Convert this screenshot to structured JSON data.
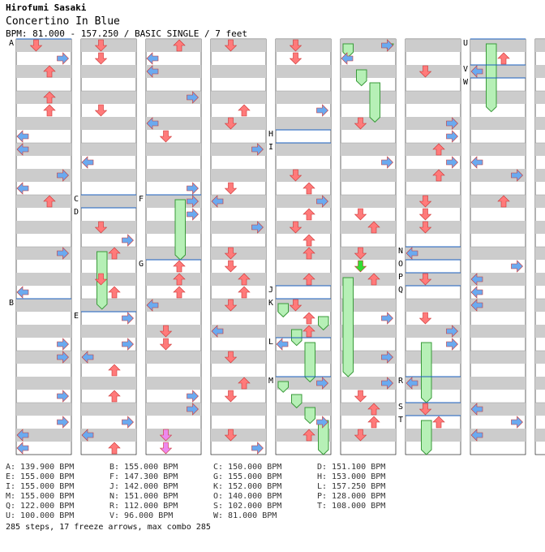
{
  "header": {
    "artist": "Hirofumi Sasaki",
    "title": "Concertino In Blue",
    "info": "BPM: 81.000 - 157.250 / BASIC SINGLE / 7 feet"
  },
  "columns": 9,
  "measures_per_column": 8,
  "bpm_changes": [
    {
      "label": "A",
      "col": 0,
      "measure": 0.0
    },
    {
      "label": "B",
      "col": 0,
      "measure": 5.0
    },
    {
      "label": "C",
      "col": 1,
      "measure": 3.0
    },
    {
      "label": "D",
      "col": 1,
      "measure": 3.25
    },
    {
      "label": "E",
      "col": 1,
      "measure": 5.25
    },
    {
      "label": "F",
      "col": 2,
      "measure": 3.0
    },
    {
      "label": "G",
      "col": 2,
      "measure": 4.25
    },
    {
      "label": "H",
      "col": 4,
      "measure": 1.75
    },
    {
      "label": "I",
      "col": 4,
      "measure": 2.0
    },
    {
      "label": "J",
      "col": 4,
      "measure": 4.75
    },
    {
      "label": "K",
      "col": 4,
      "measure": 5.0
    },
    {
      "label": "L",
      "col": 4,
      "measure": 5.75
    },
    {
      "label": "M",
      "col": 4,
      "measure": 6.5
    },
    {
      "label": "N",
      "col": 6,
      "measure": 4.0
    },
    {
      "label": "O",
      "col": 6,
      "measure": 4.25
    },
    {
      "label": "P",
      "col": 6,
      "measure": 4.5
    },
    {
      "label": "Q",
      "col": 6,
      "measure": 4.75
    },
    {
      "label": "R",
      "col": 6,
      "measure": 6.5
    },
    {
      "label": "S",
      "col": 6,
      "measure": 7.0
    },
    {
      "label": "T",
      "col": 6,
      "measure": 7.25
    },
    {
      "label": "U",
      "col": 7,
      "measure": 0.0
    },
    {
      "label": "V",
      "col": 7,
      "measure": 0.5
    },
    {
      "label": "W",
      "col": 7,
      "measure": 0.75
    }
  ],
  "freezes": [
    {
      "col": 1,
      "lane": 1,
      "start": 4.0,
      "end": 5.2
    },
    {
      "col": 2,
      "lane": 2,
      "start": 3.0,
      "end": 4.25
    },
    {
      "col": 5,
      "lane": 0,
      "start": 0.0,
      "end": 0.35
    },
    {
      "col": 5,
      "lane": 3,
      "start": 0.0,
      "end": 0.2
    },
    {
      "col": 5,
      "lane": 1,
      "start": 0.5,
      "end": 0.9
    },
    {
      "col": 5,
      "lane": 2,
      "start": 0.75,
      "end": 1.6
    },
    {
      "col": 5,
      "lane": 0,
      "start": 4.5,
      "end": 6.5
    },
    {
      "col": 4,
      "lane": 0,
      "start": 5.0,
      "end": 5.35
    },
    {
      "col": 4,
      "lane": 1,
      "start": 5.5,
      "end": 5.9
    },
    {
      "col": 4,
      "lane": 3,
      "start": 5.25,
      "end": 5.6
    },
    {
      "col": 4,
      "lane": 2,
      "start": 5.75,
      "end": 6.6
    },
    {
      "col": 4,
      "lane": 0,
      "start": 6.5,
      "end": 6.8
    },
    {
      "col": 4,
      "lane": 1,
      "start": 6.75,
      "end": 7.1
    },
    {
      "col": 4,
      "lane": 2,
      "start": 7.0,
      "end": 7.4
    },
    {
      "col": 4,
      "lane": 3,
      "start": 7.25,
      "end": 8.0
    },
    {
      "col": 6,
      "lane": 1,
      "start": 5.75,
      "end": 7.0
    },
    {
      "col": 6,
      "lane": 1,
      "start": 7.25,
      "end": 8.0
    },
    {
      "col": 7,
      "lane": 1,
      "start": 0.0,
      "end": 1.4
    }
  ],
  "legend": [
    [
      "A: 139.900 BPM",
      "B: 155.000 BPM",
      "C: 150.000 BPM",
      "D: 151.100 BPM"
    ],
    [
      "E: 155.000 BPM",
      "F: 147.300 BPM",
      "G: 155.000 BPM",
      "H: 153.000 BPM"
    ],
    [
      "I: 155.000 BPM",
      "J: 142.000 BPM",
      "K: 152.000 BPM",
      "L: 157.250 BPM"
    ],
    [
      "M: 155.000 BPM",
      "N: 151.000 BPM",
      "O: 140.000 BPM",
      "P: 128.000 BPM"
    ],
    [
      "Q: 122.000 BPM",
      "R: 112.000 BPM",
      "S: 102.000 BPM",
      "T: 108.000 BPM"
    ],
    [
      "U: 100.000 BPM",
      "V: 96.000 BPM",
      "W: 81.000 BPM",
      ""
    ]
  ],
  "summary": "285 steps, 17 freeze arrows, max combo 285",
  "colors": {
    "band": "#cccccc",
    "left_right": "#ff7a7a",
    "up_down_quarter": "#6aaaf0",
    "sixteenth": "#ee88ee",
    "eighth_green": "#33dd33",
    "freeze_fill": "#b6f0b6",
    "freeze_stroke": "#3a9a3a",
    "bpm_line": "#1a5fbf"
  }
}
